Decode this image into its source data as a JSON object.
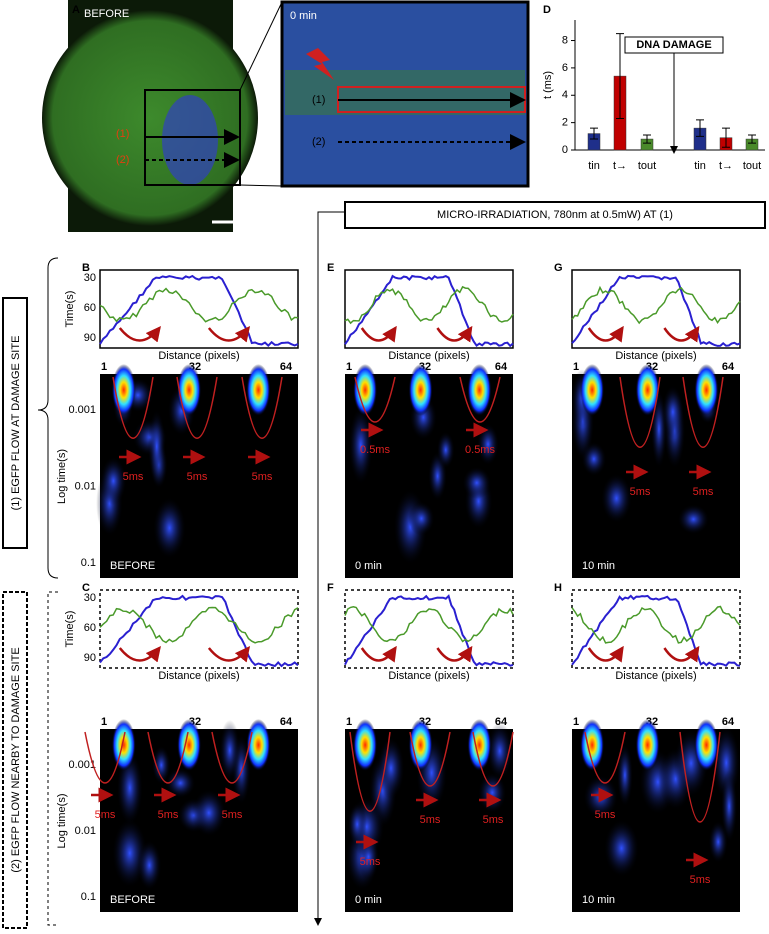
{
  "panel_a": {
    "label": "A",
    "before": "BEFORE",
    "zoom_time": "0 min",
    "line_1": "(1)",
    "line_2": "(2)"
  },
  "chart_data": {
    "type": "bar",
    "label": "D",
    "ylabel": "t (ms)",
    "annotation": "DNA DAMAGE",
    "categories": [
      "tin",
      "t→",
      "tout",
      "tin",
      "t→",
      "tout"
    ],
    "values": [
      1.2,
      5.4,
      0.8,
      1.6,
      0.9,
      0.8
    ],
    "errors": [
      0.4,
      3.1,
      0.3,
      0.6,
      0.7,
      0.3
    ],
    "colors": [
      "#1f2f8a",
      "#c00000",
      "#4a8a2a",
      "#1f2f8a",
      "#c00000",
      "#4a8a2a"
    ],
    "ylim": [
      0,
      9.5
    ],
    "yticks": [
      0,
      2,
      4,
      6,
      8
    ]
  },
  "banner": "MICRO-IRRADIATION, 780nm at 0.5mW) AT (1)",
  "row_labels": [
    "(1) EGFP FLOW AT DAMAGE SITE",
    "(2) EGFP FLOW NEARBY TO DAMAGE SITE"
  ],
  "axes": {
    "time_label": "Time(s)",
    "time_ticks": [
      30,
      60,
      90
    ],
    "distance_label": "Distance (pixels)",
    "distance_ticks": [
      1,
      32,
      64
    ],
    "log_label": "Log time(s)",
    "log_ticks": [
      0.001,
      0.01,
      0.1
    ]
  },
  "panels": [
    {
      "label": "B",
      "condition": "BEFORE",
      "annotations": [
        "5ms",
        "5ms",
        "5ms"
      ]
    },
    {
      "label": "E",
      "condition": "0 min",
      "annotations": [
        "0.5ms",
        "0.5ms"
      ]
    },
    {
      "label": "G",
      "condition": "10 min",
      "annotations": [
        "5ms",
        "5ms"
      ]
    },
    {
      "label": "C",
      "condition": "BEFORE",
      "annotations": [
        "5ms",
        "5ms",
        "5ms"
      ]
    },
    {
      "label": "F",
      "condition": "0 min",
      "annotations": [
        "5ms",
        "5ms",
        "5ms"
      ]
    },
    {
      "label": "H",
      "condition": "10 min",
      "annotations": [
        "5ms",
        "5ms"
      ]
    }
  ]
}
